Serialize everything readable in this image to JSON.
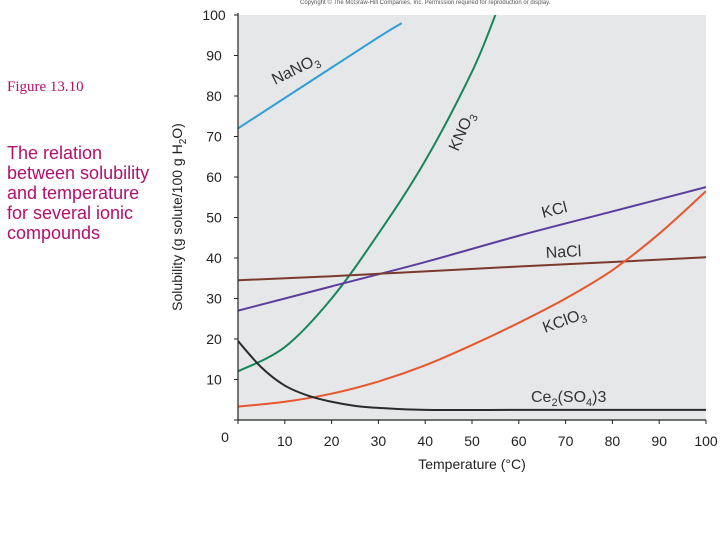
{
  "figure_label": "Figure 13.10",
  "caption": "The relation between solubility and temperature for several ionic compounds",
  "copyright": "Copyright © The McGraw-Hill Companies, Inc. Permission required for reproduction or display.",
  "chart_data": {
    "type": "line",
    "title": "",
    "xlabel": "Temperature (°C)",
    "ylabel": "Solubility (g solute/100 g H2O)",
    "xlim": [
      0,
      100
    ],
    "ylim": [
      0,
      100
    ],
    "xticks": [
      0,
      10,
      20,
      30,
      40,
      50,
      60,
      70,
      80,
      90,
      100
    ],
    "yticks": [
      0,
      10,
      20,
      30,
      40,
      50,
      60,
      70,
      80,
      90,
      100
    ],
    "grid": false,
    "series": [
      {
        "name": "NaNO3",
        "label_main": "NaNO",
        "label_sub": "3",
        "color": "#2f9fd8",
        "x": [
          0,
          10,
          20,
          30,
          35
        ],
        "y": [
          72,
          79.5,
          87,
          94.5,
          98
        ]
      },
      {
        "name": "KNO3",
        "label_main": "KNO",
        "label_sub": "3",
        "color": "#17865a",
        "x": [
          0,
          10,
          20,
          30,
          40,
          50,
          55
        ],
        "y": [
          12,
          18,
          30,
          46,
          64,
          86,
          100
        ]
      },
      {
        "name": "KCl",
        "label_main": "KCl",
        "label_sub": "",
        "color": "#5b3d9e",
        "x": [
          0,
          20,
          40,
          60,
          80,
          100
        ],
        "y": [
          27,
          33,
          39,
          45.5,
          51.5,
          57.5
        ]
      },
      {
        "name": "NaCl",
        "label_main": "NaCl",
        "label_sub": "",
        "color": "#7a3b2e",
        "x": [
          0,
          20,
          40,
          60,
          80,
          100
        ],
        "y": [
          34.5,
          35.5,
          36.7,
          37.9,
          39,
          40.2
        ]
      },
      {
        "name": "KClO3",
        "label_main": "KClO",
        "label_sub": "3",
        "color": "#e8552e",
        "x": [
          0,
          10,
          20,
          30,
          40,
          50,
          60,
          70,
          80,
          90,
          100
        ],
        "y": [
          3.3,
          4.5,
          6.5,
          9.5,
          13.5,
          18.5,
          24,
          30,
          37,
          46,
          56.5
        ]
      },
      {
        "name": "Ce2(SO4)3",
        "label_main": "Ce",
        "label_sub": "2",
        "label_mid": "(SO",
        "label_sub2": "4",
        "label_end": ")3",
        "color": "#2b2b2b",
        "x": [
          0,
          5,
          10,
          15,
          20,
          25,
          30,
          40,
          60,
          80,
          100
        ],
        "y": [
          19.5,
          13,
          8.5,
          6,
          4.5,
          3.5,
          3,
          2.5,
          2.5,
          2.5,
          2.5
        ]
      }
    ]
  }
}
